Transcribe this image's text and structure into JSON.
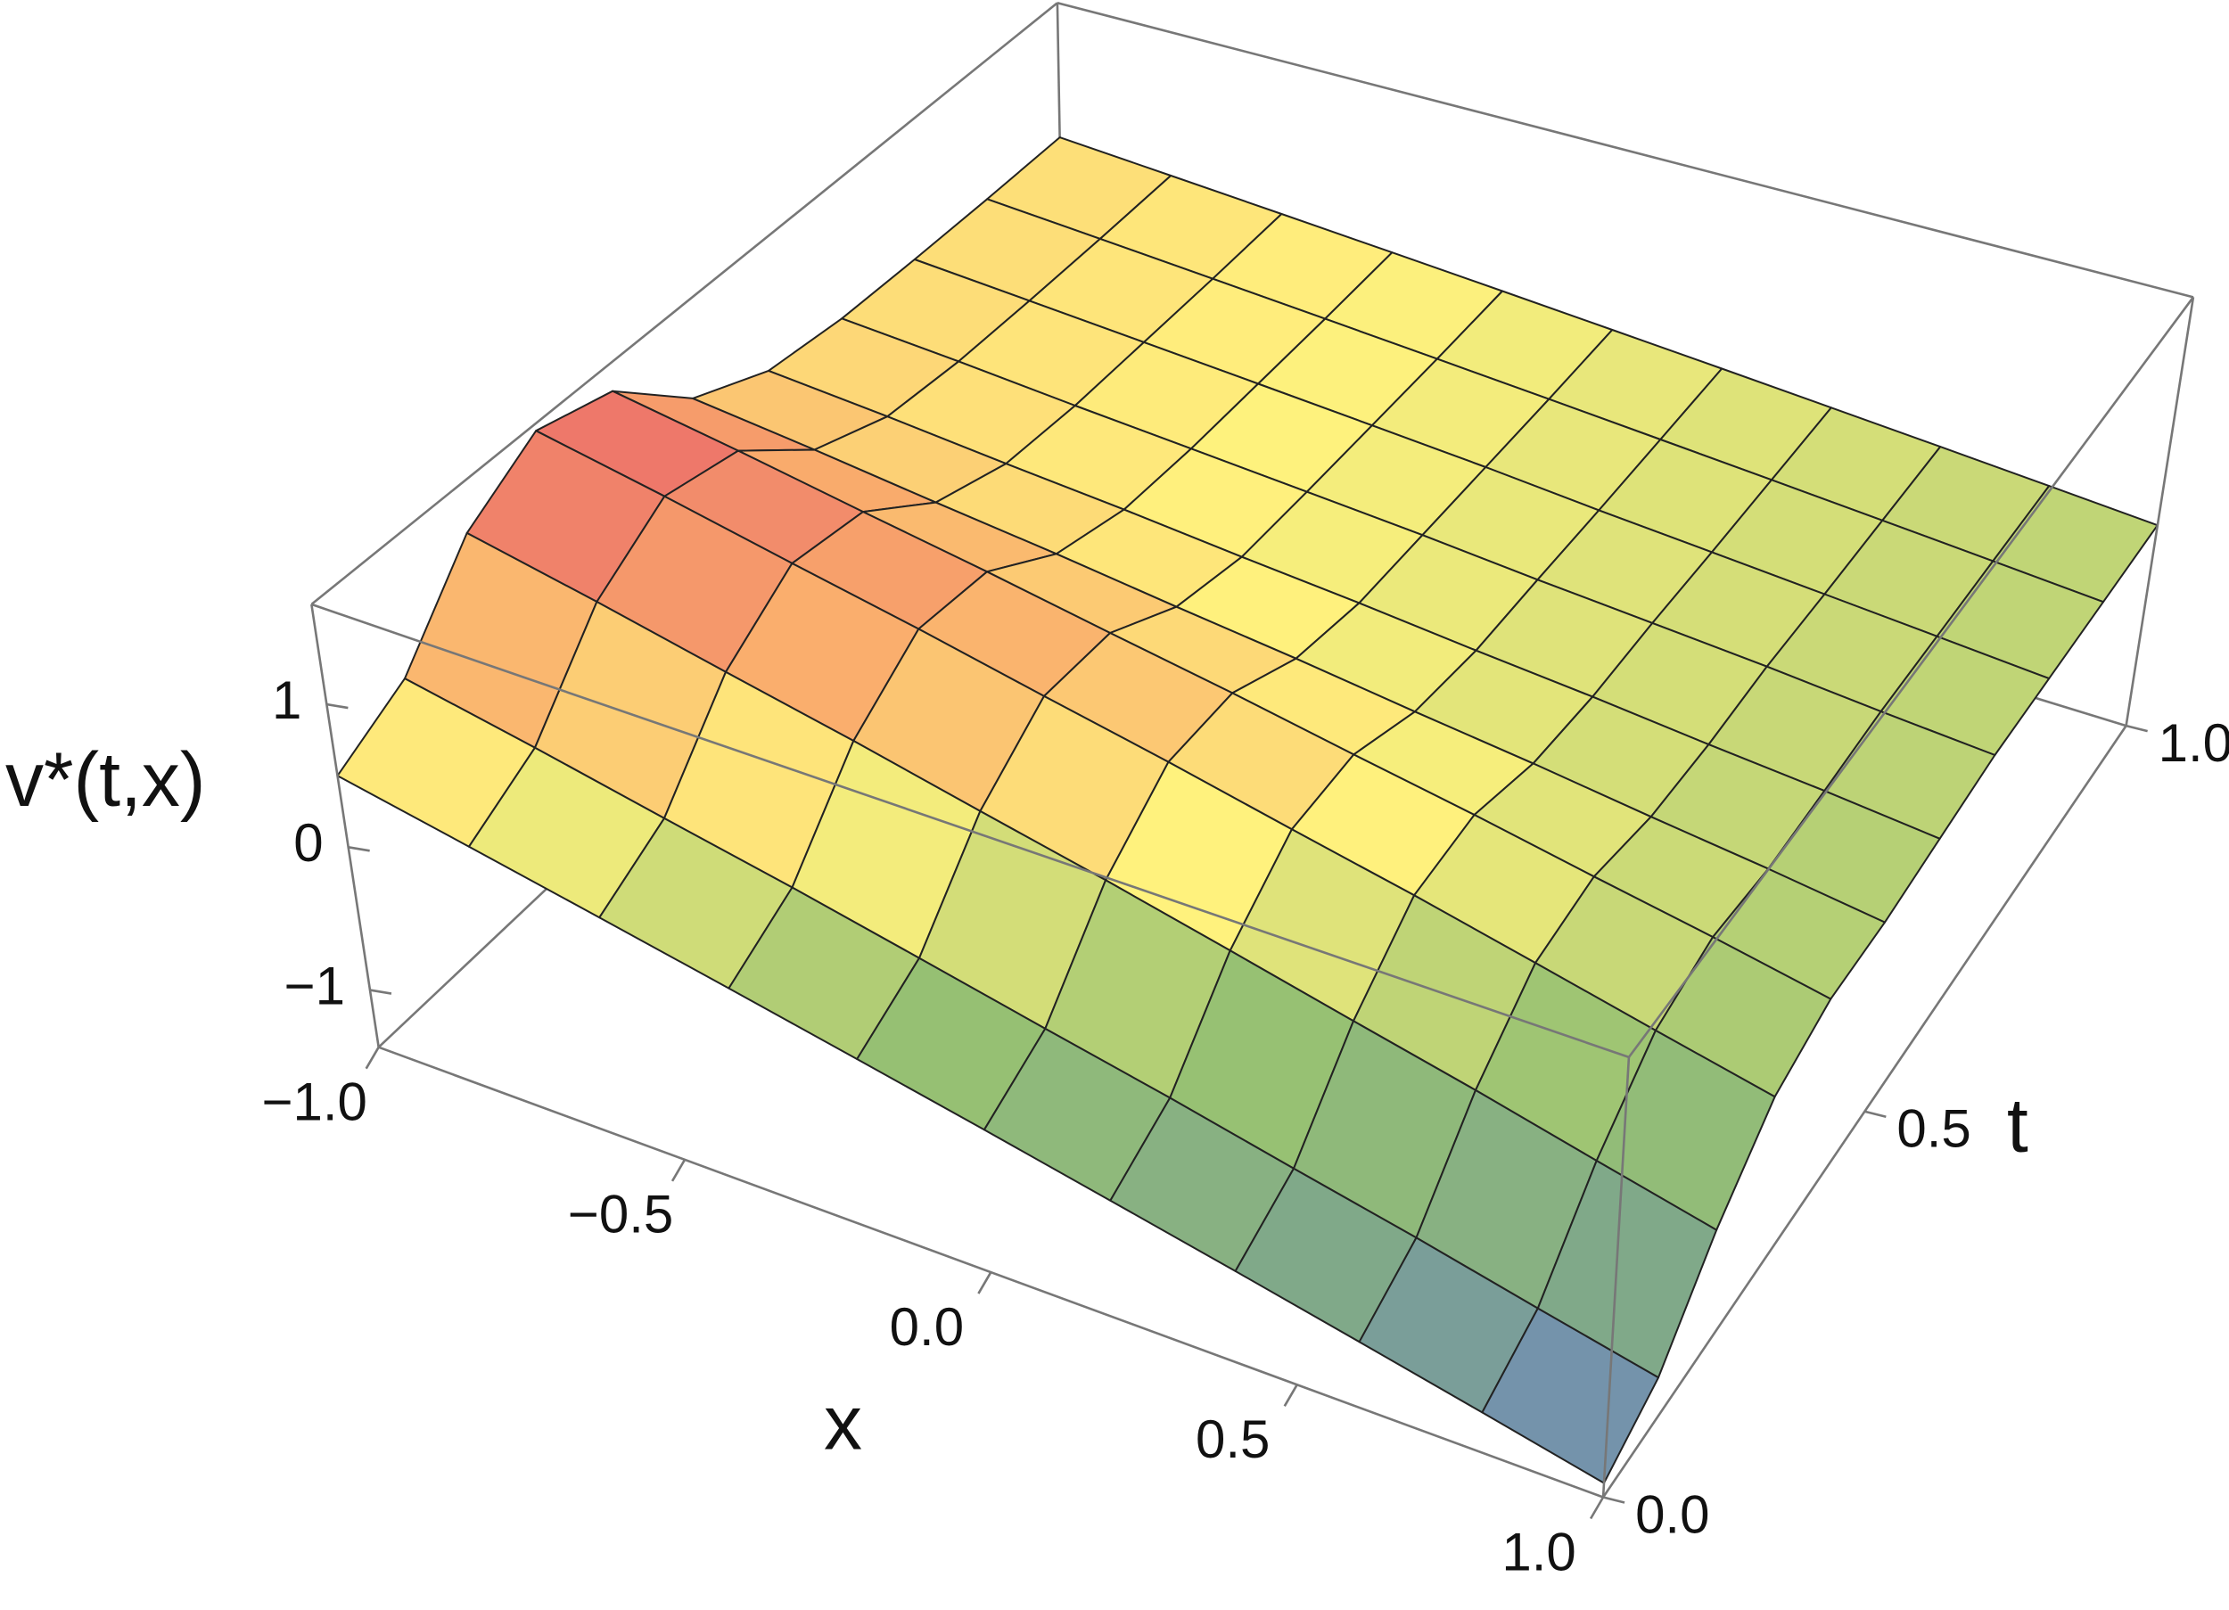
{
  "chart_data": {
    "type": "surface",
    "xlabel": "x",
    "ylabel": "t",
    "zlabel": "v*(t,x)",
    "x": [
      -1,
      -0.8,
      -0.6,
      -0.4,
      -0.2,
      0,
      0.2,
      0.4,
      0.6,
      0.8,
      1
    ],
    "y": [
      0,
      0.1,
      0.2,
      0.3,
      0.4,
      0.5,
      0.6,
      0.7,
      0.8,
      0.9,
      1
    ],
    "z": [
      [
        0.5,
        0.32,
        0.14,
        -0.04,
        -0.22,
        -0.4,
        -0.58,
        -0.76,
        -0.94,
        -1.12,
        -1.3
      ],
      [
        0.75,
        0.57,
        0.38,
        0.2,
        0.01,
        -0.18,
        -0.36,
        -0.55,
        -0.73,
        -0.92,
        -1.1
      ],
      [
        1.35,
        1.16,
        0.96,
        0.77,
        0.57,
        0.38,
        0.18,
        -0.02,
        -0.21,
        -0.41,
        -0.6
      ],
      [
        1.65,
        1.47,
        1.28,
        1.1,
        0.91,
        0.73,
        0.54,
        0.36,
        0.17,
        -0.02,
        -0.2
      ],
      [
        1.5,
        1.35,
        1.19,
        1.04,
        0.88,
        0.73,
        0.57,
        0.42,
        0.26,
        0.11,
        -0.05
      ],
      [
        1.0,
        0.9,
        0.79,
        0.69,
        0.58,
        0.48,
        0.37,
        0.27,
        0.16,
        0.06,
        -0.05
      ],
      [
        0.75,
        0.68,
        0.6,
        0.53,
        0.45,
        0.38,
        0.3,
        0.23,
        0.15,
        0.08,
        0
      ],
      [
        0.68,
        0.62,
        0.55,
        0.49,
        0.43,
        0.37,
        0.3,
        0.24,
        0.18,
        0.11,
        0.05
      ],
      [
        0.66,
        0.6,
        0.54,
        0.48,
        0.42,
        0.36,
        0.29,
        0.23,
        0.17,
        0.11,
        0.05
      ],
      [
        0.65,
        0.59,
        0.53,
        0.47,
        0.41,
        0.35,
        0.29,
        0.23,
        0.17,
        0.11,
        0.05
      ],
      [
        0.65,
        0.59,
        0.53,
        0.47,
        0.41,
        0.35,
        0.29,
        0.23,
        0.17,
        0.11,
        0.05
      ]
    ],
    "xlim": [
      -1,
      1
    ],
    "ylim": [
      0,
      1
    ],
    "zlim": [
      -1.4,
      1.7
    ],
    "xticks": [
      {
        "value": -1,
        "label": "−1.0"
      },
      {
        "value": -0.5,
        "label": "−0.5"
      },
      {
        "value": 0,
        "label": "0.0"
      },
      {
        "value": 0.5,
        "label": "0.5"
      },
      {
        "value": 1,
        "label": "1.0"
      }
    ],
    "yticks": [
      {
        "value": 0,
        "label": "0.0"
      },
      {
        "value": 0.5,
        "label": "0.5"
      },
      {
        "value": 1,
        "label": "1.0"
      }
    ],
    "zticks": [
      {
        "value": -1,
        "label": "−1"
      },
      0,
      1
    ],
    "colors": [
      "#6b80c8",
      "#7fa88a",
      "#98c272",
      "#fff27d",
      "#f9a86b",
      "#e8606a"
    ],
    "mesh": true,
    "box": true
  }
}
